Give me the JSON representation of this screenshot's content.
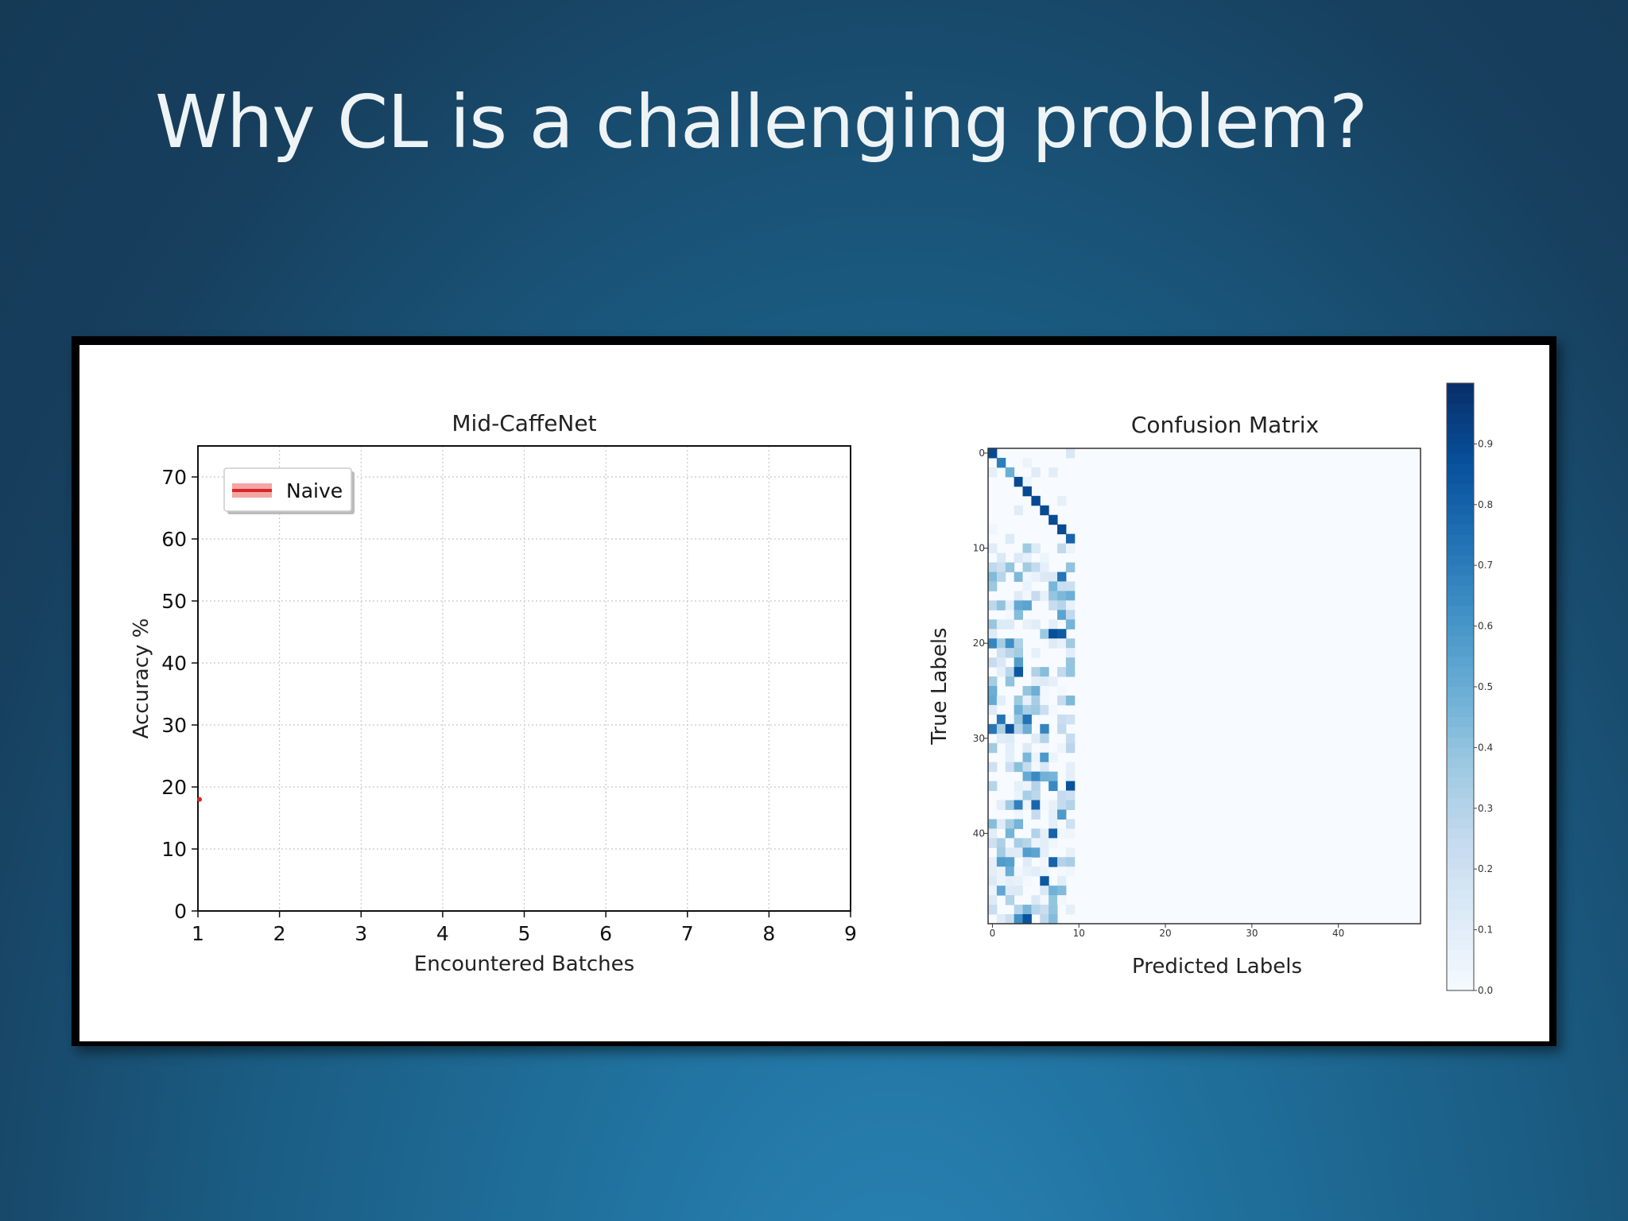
{
  "slide": {
    "title": "Why CL is a challenging problem?"
  },
  "colors": {
    "accent_red": "#d62728",
    "cm_dark": "#08306b",
    "cm_light": "#f7fbff"
  },
  "chart_data": [
    {
      "type": "line",
      "title": "Mid-CaffeNet",
      "xlabel": "Encountered Batches",
      "ylabel": "Accuracy %",
      "xlim": [
        1,
        9
      ],
      "ylim": [
        0,
        75
      ],
      "xticks": [
        "1",
        "2",
        "3",
        "4",
        "5",
        "6",
        "7",
        "8",
        "9"
      ],
      "yticks": [
        "0",
        "10",
        "20",
        "30",
        "40",
        "50",
        "60",
        "70"
      ],
      "grid": true,
      "legend_position": "top-left",
      "series": [
        {
          "name": "Naive",
          "color": "#d62728",
          "x": [
            1
          ],
          "y": [
            18
          ]
        }
      ]
    },
    {
      "type": "heatmap",
      "title": "Confusion Matrix",
      "xlabel": "Predicted Labels",
      "ylabel": "True Labels",
      "size": 50,
      "xticks": [
        "0",
        "10",
        "20",
        "30",
        "40"
      ],
      "yticks": [
        "0",
        "10",
        "20",
        "30",
        "40"
      ],
      "colorbar_ticks": [
        "0.0",
        "0.1",
        "0.2",
        "0.3",
        "0.4",
        "0.5",
        "0.6",
        "0.7",
        "0.8",
        "0.9"
      ],
      "colorbar_range": [
        0,
        1
      ],
      "colormap": "Blues",
      "diagonal_rows_0_to_9": [
        0.9,
        0.7,
        0.5,
        0.9,
        0.9,
        0.9,
        0.9,
        0.9,
        0.9,
        0.8
      ],
      "dense_predicted_columns": [
        0,
        9
      ]
    }
  ]
}
